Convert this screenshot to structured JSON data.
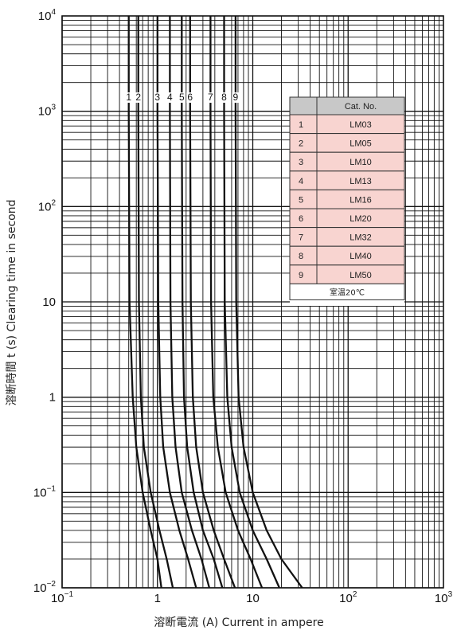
{
  "chart_data": {
    "type": "line",
    "title": "",
    "xlabel": "溶断電流 (A)  Current in ampere",
    "ylabel": "溶断時間 t (s)  Clearing time in second",
    "x_scale": "log",
    "y_scale": "log",
    "xlim": [
      0.1,
      1000
    ],
    "ylim": [
      0.01,
      10000
    ],
    "grid": true,
    "x_ticks": [
      {
        "base": "10",
        "exp": "−1"
      },
      {
        "base": "1",
        "exp": ""
      },
      {
        "base": "10",
        "exp": ""
      },
      {
        "base": "10",
        "exp": "2"
      },
      {
        "base": "10",
        "exp": "3"
      }
    ],
    "y_ticks": [
      {
        "base": "10",
        "exp": "4"
      },
      {
        "base": "10",
        "exp": "3"
      },
      {
        "base": "10",
        "exp": "2"
      },
      {
        "base": "10",
        "exp": ""
      },
      {
        "base": "1",
        "exp": ""
      },
      {
        "base": "10",
        "exp": "−1"
      },
      {
        "base": "10",
        "exp": "−2"
      }
    ],
    "series": [
      {
        "name": "1",
        "x": [
          0.5,
          0.5,
          0.51,
          0.55,
          0.6,
          0.7,
          0.85,
          1.0,
          1.1
        ],
        "y": [
          10000,
          1000,
          10,
          1,
          0.3,
          0.1,
          0.04,
          0.02,
          0.01
        ]
      },
      {
        "name": "2",
        "x": [
          0.63,
          0.63,
          0.64,
          0.67,
          0.72,
          0.85,
          1.05,
          1.25,
          1.45
        ],
        "y": [
          10000,
          1000,
          10,
          1,
          0.3,
          0.1,
          0.04,
          0.02,
          0.01
        ]
      },
      {
        "name": "3",
        "x": [
          1.0,
          1.0,
          1.02,
          1.07,
          1.15,
          1.35,
          1.7,
          2.1,
          2.55
        ],
        "y": [
          10000,
          1000,
          10,
          1,
          0.3,
          0.1,
          0.04,
          0.02,
          0.01
        ]
      },
      {
        "name": "4",
        "x": [
          1.35,
          1.35,
          1.37,
          1.43,
          1.55,
          1.8,
          2.3,
          2.9,
          3.5
        ],
        "y": [
          10000,
          1000,
          10,
          1,
          0.3,
          0.1,
          0.04,
          0.02,
          0.01
        ]
      },
      {
        "name": "5",
        "x": [
          1.8,
          1.8,
          1.83,
          1.9,
          2.05,
          2.4,
          3.0,
          3.9,
          4.8
        ],
        "y": [
          10000,
          1000,
          10,
          1,
          0.3,
          0.1,
          0.04,
          0.02,
          0.01
        ]
      },
      {
        "name": "6",
        "x": [
          2.2,
          2.2,
          2.24,
          2.35,
          2.55,
          3.0,
          3.9,
          5.0,
          6.5
        ],
        "y": [
          10000,
          1000,
          10,
          1,
          0.3,
          0.1,
          0.04,
          0.02,
          0.01
        ]
      },
      {
        "name": "7",
        "x": [
          3.6,
          3.6,
          3.65,
          3.85,
          4.3,
          5.2,
          7.0,
          9.5,
          12.5
        ],
        "y": [
          10000,
          1000,
          10,
          1,
          0.3,
          0.1,
          0.04,
          0.02,
          0.01
        ]
      },
      {
        "name": "8",
        "x": [
          5.0,
          5.0,
          5.08,
          5.4,
          6.0,
          7.3,
          10.0,
          14.0,
          19.0
        ],
        "y": [
          10000,
          1000,
          10,
          1,
          0.3,
          0.1,
          0.04,
          0.02,
          0.01
        ]
      },
      {
        "name": "9",
        "x": [
          6.6,
          6.6,
          6.7,
          7.1,
          8.0,
          10.0,
          14.0,
          20.0,
          33.0
        ],
        "y": [
          10000,
          1000,
          10,
          1,
          0.3,
          0.1,
          0.04,
          0.02,
          0.01
        ]
      }
    ],
    "label_y": 1300,
    "legend": {
      "placement": "top-right",
      "header": [
        "",
        "Cat. No."
      ],
      "rows": [
        [
          "1",
          "LM03"
        ],
        [
          "2",
          "LM05"
        ],
        [
          "3",
          "LM10"
        ],
        [
          "4",
          "LM13"
        ],
        [
          "5",
          "LM16"
        ],
        [
          "6",
          "LM20"
        ],
        [
          "7",
          "LM32"
        ],
        [
          "8",
          "LM40"
        ],
        [
          "9",
          "LM50"
        ]
      ],
      "note": "室温20℃",
      "row_color": "#f8d4d0",
      "header_color": "#c8c8c8"
    },
    "line_color": "#111111",
    "grid_color": "#111111"
  }
}
